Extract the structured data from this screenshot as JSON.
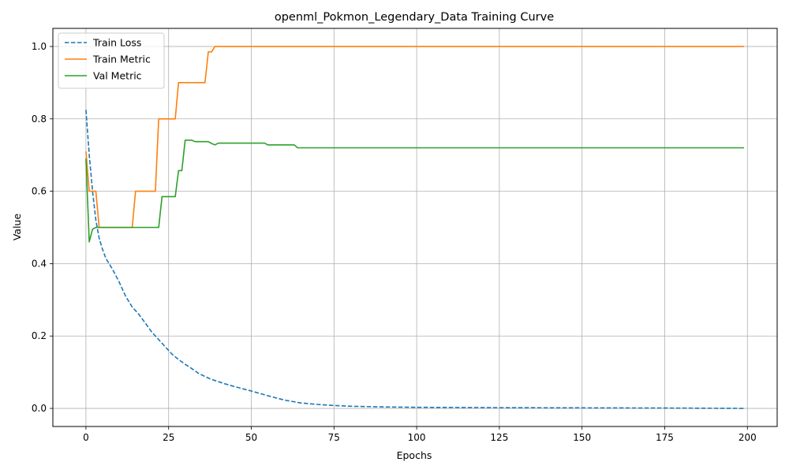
{
  "chart_data": {
    "type": "line",
    "title": "openml_Pokmon_Legendary_Data Training Curve",
    "xlabel": "Epochs",
    "ylabel": "Value",
    "xlim": [
      -10,
      209
    ],
    "ylim": [
      -0.05,
      1.05
    ],
    "xticks": [
      0,
      25,
      50,
      75,
      100,
      125,
      150,
      175,
      200
    ],
    "yticks": [
      0.0,
      0.2,
      0.4,
      0.6,
      0.8,
      1.0
    ],
    "xtick_labels": [
      "0",
      "25",
      "50",
      "75",
      "100",
      "125",
      "150",
      "175",
      "200"
    ],
    "ytick_labels": [
      "0.0",
      "0.2",
      "0.4",
      "0.6",
      "0.8",
      "1.0"
    ],
    "grid": true,
    "legend_position": "top-left",
    "series": [
      {
        "name": "Train Loss",
        "color": "#1f77b4",
        "style": "dashed",
        "points": [
          [
            0,
            0.825
          ],
          [
            1,
            0.7
          ],
          [
            2,
            0.6
          ],
          [
            3,
            0.52
          ],
          [
            4,
            0.47
          ],
          [
            5,
            0.44
          ],
          [
            6,
            0.415
          ],
          [
            8,
            0.385
          ],
          [
            10,
            0.35
          ],
          [
            12,
            0.31
          ],
          [
            14,
            0.28
          ],
          [
            16,
            0.26
          ],
          [
            18,
            0.235
          ],
          [
            20,
            0.21
          ],
          [
            22,
            0.19
          ],
          [
            24,
            0.17
          ],
          [
            26,
            0.15
          ],
          [
            28,
            0.135
          ],
          [
            30,
            0.122
          ],
          [
            32,
            0.11
          ],
          [
            34,
            0.097
          ],
          [
            36,
            0.088
          ],
          [
            38,
            0.08
          ],
          [
            40,
            0.074
          ],
          [
            42,
            0.068
          ],
          [
            45,
            0.06
          ],
          [
            50,
            0.048
          ],
          [
            55,
            0.035
          ],
          [
            60,
            0.023
          ],
          [
            65,
            0.015
          ],
          [
            70,
            0.011
          ],
          [
            75,
            0.008
          ],
          [
            80,
            0.006
          ],
          [
            90,
            0.004
          ],
          [
            100,
            0.003
          ],
          [
            125,
            0.002
          ],
          [
            150,
            0.0015
          ],
          [
            175,
            0.001
          ],
          [
            199,
            0.0
          ]
        ]
      },
      {
        "name": "Train Metric",
        "color": "#ff7f0e",
        "style": "solid",
        "points": [
          [
            0,
            0.71
          ],
          [
            1,
            0.6
          ],
          [
            2,
            0.6
          ],
          [
            3,
            0.6
          ],
          [
            4,
            0.5
          ],
          [
            14,
            0.5
          ],
          [
            15,
            0.6
          ],
          [
            21,
            0.6
          ],
          [
            22,
            0.8
          ],
          [
            27,
            0.8
          ],
          [
            28,
            0.9
          ],
          [
            36,
            0.9
          ],
          [
            37,
            0.985
          ],
          [
            38,
            0.985
          ],
          [
            39,
            1.0
          ],
          [
            199,
            1.0
          ]
        ]
      },
      {
        "name": "Val Metric",
        "color": "#2ca02c",
        "style": "solid",
        "points": [
          [
            0,
            0.69
          ],
          [
            1,
            0.46
          ],
          [
            2,
            0.495
          ],
          [
            3,
            0.5
          ],
          [
            22,
            0.5
          ],
          [
            23,
            0.585
          ],
          [
            27,
            0.585
          ],
          [
            28,
            0.657
          ],
          [
            29,
            0.657
          ],
          [
            30,
            0.741
          ],
          [
            32,
            0.741
          ],
          [
            33,
            0.737
          ],
          [
            37,
            0.737
          ],
          [
            38,
            0.732
          ],
          [
            39,
            0.728
          ],
          [
            40,
            0.733
          ],
          [
            54,
            0.733
          ],
          [
            55,
            0.728
          ],
          [
            63,
            0.728
          ],
          [
            64,
            0.72
          ],
          [
            199,
            0.72
          ]
        ]
      }
    ]
  }
}
